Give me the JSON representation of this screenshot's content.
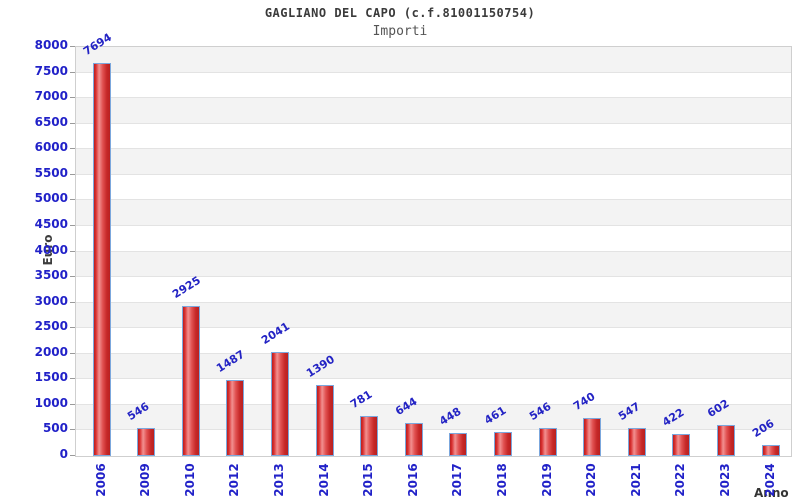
{
  "chart": {
    "title": "GAGLIANO DEL CAPO (c.f.81001150754)",
    "subtitle": "Importi",
    "ylabel": "Euro",
    "xlabel": "Anno"
  },
  "chart_data": {
    "type": "bar",
    "title": "GAGLIANO DEL CAPO (c.f.81001150754)",
    "subtitle": "Importi",
    "xlabel": "Anno",
    "ylabel": "Euro",
    "categories": [
      "2006",
      "2009",
      "2010",
      "2012",
      "2013",
      "2014",
      "2015",
      "2016",
      "2017",
      "2018",
      "2019",
      "2020",
      "2021",
      "2022",
      "2023",
      "2024"
    ],
    "values": [
      7694,
      546,
      2925,
      1487,
      2041,
      1390,
      781,
      644,
      448,
      461,
      546,
      740,
      547,
      422,
      602,
      206
    ],
    "ylim": [
      0,
      8000
    ],
    "ytick_step": 500,
    "grid": "horizontal-lines-with-alternating-bands",
    "legend": "none",
    "colors": {
      "bar_fill_dark": "#b92020",
      "bar_fill_light": "#f29090",
      "bar_border": "#7ba7dd",
      "value_label": "#2323c4",
      "tick_label": "#2121c8",
      "band_alt": "#f3f3f3",
      "grid_line": "#e3e3e3",
      "title": "#3a3a3a",
      "subtitle": "#555555",
      "axis_label": "#3d3d3d",
      "plot_border": "#cfcfcf"
    }
  }
}
